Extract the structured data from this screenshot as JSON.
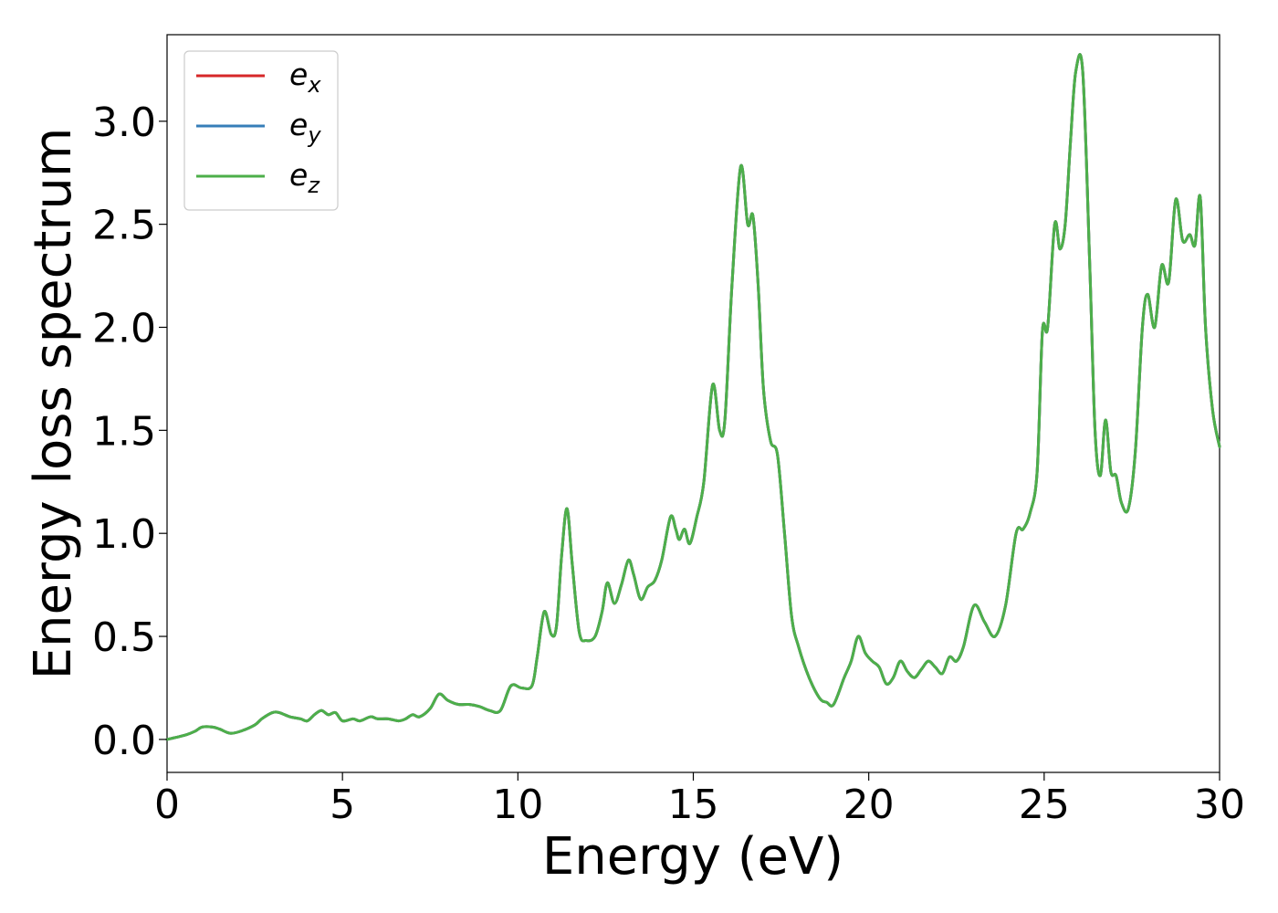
{
  "chart_data": {
    "type": "line",
    "title": "",
    "xlabel": "Energy (eV)",
    "ylabel": "Energy loss spectrum",
    "xlim": [
      0,
      30
    ],
    "ylim": [
      -0.16,
      3.42
    ],
    "xticks": [
      0,
      5,
      10,
      15,
      20,
      25,
      30
    ],
    "xtick_labels": [
      "0",
      "5",
      "10",
      "15",
      "20",
      "25",
      "30"
    ],
    "yticks": [
      0,
      0.5,
      1,
      1.5,
      2,
      2.5,
      3
    ],
    "ytick_labels": [
      "0.0",
      "0.5",
      "1.0",
      "1.5",
      "2.0",
      "2.5",
      "3.0"
    ],
    "grid": false,
    "legend": {
      "placement": "top-left",
      "entries": [
        {
          "base": "e",
          "sub": "x",
          "color": "#d62728"
        },
        {
          "base": "e",
          "sub": "y",
          "color": "#377eb8"
        },
        {
          "base": "e",
          "sub": "z",
          "color": "#4daf4a"
        }
      ]
    },
    "series_points": [
      [
        0,
        0.0
      ],
      [
        0.5,
        0.02
      ],
      [
        0.8,
        0.04
      ],
      [
        1.0,
        0.06
      ],
      [
        1.3,
        0.06
      ],
      [
        1.5,
        0.05
      ],
      [
        1.8,
        0.03
      ],
      [
        2.1,
        0.04
      ],
      [
        2.5,
        0.07
      ],
      [
        2.7,
        0.1
      ],
      [
        3.0,
        0.13
      ],
      [
        3.2,
        0.13
      ],
      [
        3.5,
        0.11
      ],
      [
        3.8,
        0.1
      ],
      [
        4.0,
        0.09
      ],
      [
        4.2,
        0.12
      ],
      [
        4.4,
        0.14
      ],
      [
        4.6,
        0.12
      ],
      [
        4.8,
        0.13
      ],
      [
        5.0,
        0.09
      ],
      [
        5.3,
        0.1
      ],
      [
        5.5,
        0.09
      ],
      [
        5.8,
        0.11
      ],
      [
        6.0,
        0.1
      ],
      [
        6.3,
        0.1
      ],
      [
        6.6,
        0.09
      ],
      [
        6.8,
        0.1
      ],
      [
        7.0,
        0.12
      ],
      [
        7.2,
        0.11
      ],
      [
        7.5,
        0.15
      ],
      [
        7.75,
        0.22
      ],
      [
        8.0,
        0.19
      ],
      [
        8.3,
        0.17
      ],
      [
        8.6,
        0.17
      ],
      [
        8.9,
        0.16
      ],
      [
        9.2,
        0.14
      ],
      [
        9.5,
        0.14
      ],
      [
        9.8,
        0.26
      ],
      [
        10.1,
        0.25
      ],
      [
        10.4,
        0.26
      ],
      [
        10.55,
        0.4
      ],
      [
        10.75,
        0.62
      ],
      [
        10.95,
        0.51
      ],
      [
        11.1,
        0.55
      ],
      [
        11.25,
        0.9
      ],
      [
        11.4,
        1.12
      ],
      [
        11.55,
        0.85
      ],
      [
        11.75,
        0.52
      ],
      [
        11.95,
        0.48
      ],
      [
        12.2,
        0.5
      ],
      [
        12.4,
        0.62
      ],
      [
        12.55,
        0.76
      ],
      [
        12.75,
        0.66
      ],
      [
        12.95,
        0.75
      ],
      [
        13.15,
        0.87
      ],
      [
        13.3,
        0.8
      ],
      [
        13.5,
        0.68
      ],
      [
        13.7,
        0.74
      ],
      [
        13.9,
        0.77
      ],
      [
        14.1,
        0.87
      ],
      [
        14.35,
        1.08
      ],
      [
        14.5,
        1.02
      ],
      [
        14.6,
        0.97
      ],
      [
        14.75,
        1.02
      ],
      [
        14.9,
        0.95
      ],
      [
        15.1,
        1.08
      ],
      [
        15.3,
        1.25
      ],
      [
        15.55,
        1.72
      ],
      [
        15.75,
        1.5
      ],
      [
        15.9,
        1.55
      ],
      [
        16.1,
        2.2
      ],
      [
        16.35,
        2.78
      ],
      [
        16.55,
        2.5
      ],
      [
        16.7,
        2.54
      ],
      [
        16.85,
        2.2
      ],
      [
        17.0,
        1.7
      ],
      [
        17.2,
        1.45
      ],
      [
        17.4,
        1.38
      ],
      [
        17.6,
        1.0
      ],
      [
        17.8,
        0.6
      ],
      [
        18.0,
        0.45
      ],
      [
        18.3,
        0.3
      ],
      [
        18.6,
        0.2
      ],
      [
        18.8,
        0.18
      ],
      [
        19.0,
        0.17
      ],
      [
        19.3,
        0.3
      ],
      [
        19.5,
        0.38
      ],
      [
        19.7,
        0.5
      ],
      [
        19.9,
        0.42
      ],
      [
        20.1,
        0.38
      ],
      [
        20.3,
        0.35
      ],
      [
        20.5,
        0.27
      ],
      [
        20.7,
        0.3
      ],
      [
        20.9,
        0.38
      ],
      [
        21.1,
        0.33
      ],
      [
        21.3,
        0.3
      ],
      [
        21.5,
        0.34
      ],
      [
        21.7,
        0.38
      ],
      [
        21.9,
        0.35
      ],
      [
        22.1,
        0.32
      ],
      [
        22.3,
        0.4
      ],
      [
        22.5,
        0.38
      ],
      [
        22.7,
        0.45
      ],
      [
        23.0,
        0.65
      ],
      [
        23.3,
        0.57
      ],
      [
        23.6,
        0.5
      ],
      [
        23.9,
        0.65
      ],
      [
        24.2,
        1.0
      ],
      [
        24.4,
        1.02
      ],
      [
        24.6,
        1.1
      ],
      [
        24.8,
        1.3
      ],
      [
        24.95,
        1.98
      ],
      [
        25.1,
        2.0
      ],
      [
        25.3,
        2.5
      ],
      [
        25.45,
        2.38
      ],
      [
        25.6,
        2.5
      ],
      [
        25.75,
        2.9
      ],
      [
        25.9,
        3.24
      ],
      [
        26.1,
        3.24
      ],
      [
        26.3,
        2.3
      ],
      [
        26.45,
        1.5
      ],
      [
        26.6,
        1.28
      ],
      [
        26.75,
        1.55
      ],
      [
        26.9,
        1.3
      ],
      [
        27.05,
        1.28
      ],
      [
        27.2,
        1.15
      ],
      [
        27.4,
        1.12
      ],
      [
        27.6,
        1.4
      ],
      [
        27.8,
        2.0
      ],
      [
        27.95,
        2.16
      ],
      [
        28.15,
        2.0
      ],
      [
        28.35,
        2.3
      ],
      [
        28.55,
        2.22
      ],
      [
        28.75,
        2.62
      ],
      [
        28.95,
        2.42
      ],
      [
        29.15,
        2.45
      ],
      [
        29.3,
        2.4
      ],
      [
        29.45,
        2.63
      ],
      [
        29.6,
        2.0
      ],
      [
        29.8,
        1.6
      ],
      [
        30.0,
        1.42
      ]
    ]
  }
}
